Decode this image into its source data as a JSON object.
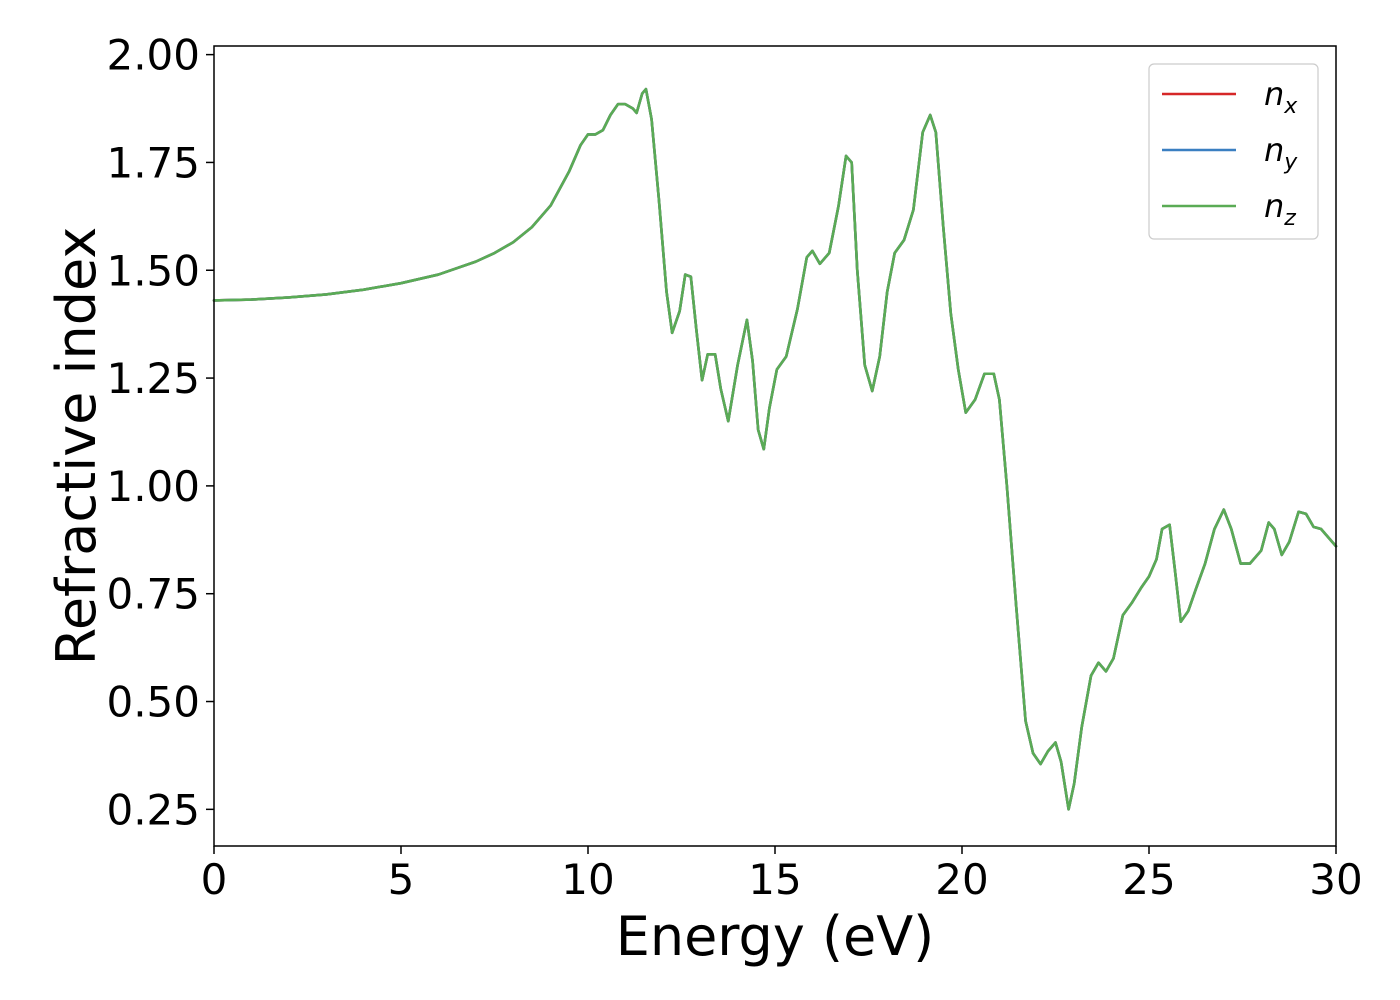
{
  "chart_data": {
    "type": "line",
    "xlabel": "Energy (eV)",
    "ylabel": "Refractive index",
    "xlim": [
      0,
      30
    ],
    "ylim": [
      0.165,
      2.02
    ],
    "xticks": [
      0,
      5,
      10,
      15,
      20,
      25,
      30
    ],
    "xtick_labels": [
      "0",
      "5",
      "10",
      "15",
      "20",
      "25",
      "30"
    ],
    "yticks": [
      0.25,
      0.5,
      0.75,
      1.0,
      1.25,
      1.5,
      1.75,
      2.0
    ],
    "ytick_labels": [
      "0.25",
      "0.50",
      "0.75",
      "1.00",
      "1.25",
      "1.50",
      "1.75",
      "2.00"
    ],
    "grid": false,
    "legend_position": "top-right",
    "colors": {
      "n_x": "#d62728",
      "n_y": "#3a7fc1",
      "n_z": "#5aab55"
    },
    "x": [
      0,
      1,
      2,
      3,
      4,
      5,
      6,
      7,
      7.5,
      8,
      8.5,
      9,
      9.5,
      9.8,
      10,
      10.2,
      10.4,
      10.6,
      10.8,
      11.0,
      11.2,
      11.3,
      11.45,
      11.55,
      11.7,
      11.9,
      12.1,
      12.25,
      12.45,
      12.6,
      12.75,
      12.9,
      13.05,
      13.2,
      13.4,
      13.55,
      13.75,
      14.0,
      14.25,
      14.4,
      14.55,
      14.7,
      14.85,
      15.05,
      15.3,
      15.6,
      15.85,
      16.0,
      16.2,
      16.45,
      16.7,
      16.9,
      17.05,
      17.2,
      17.4,
      17.6,
      17.8,
      18.0,
      18.2,
      18.45,
      18.7,
      18.95,
      19.15,
      19.3,
      19.5,
      19.7,
      19.9,
      20.1,
      20.35,
      20.6,
      20.85,
      21.0,
      21.2,
      21.45,
      21.7,
      21.9,
      22.1,
      22.3,
      22.5,
      22.65,
      22.85,
      23.0,
      23.2,
      23.45,
      23.65,
      23.85,
      24.05,
      24.3,
      24.55,
      24.8,
      25.0,
      25.2,
      25.35,
      25.55,
      25.7,
      25.85,
      26.05,
      26.25,
      26.5,
      26.75,
      27.0,
      27.2,
      27.45,
      27.7,
      28.0,
      28.2,
      28.35,
      28.55,
      28.75,
      29.0,
      29.2,
      29.4,
      29.6,
      29.8,
      30.0
    ],
    "series": [
      {
        "name": "n_x",
        "values": [
          1.43,
          1.432,
          1.437,
          1.444,
          1.455,
          1.47,
          1.49,
          1.52,
          1.54,
          1.565,
          1.6,
          1.65,
          1.73,
          1.79,
          1.815,
          1.815,
          1.825,
          1.86,
          1.885,
          1.885,
          1.875,
          1.865,
          1.91,
          1.92,
          1.85,
          1.66,
          1.45,
          1.355,
          1.405,
          1.49,
          1.485,
          1.36,
          1.245,
          1.305,
          1.305,
          1.225,
          1.15,
          1.28,
          1.385,
          1.29,
          1.13,
          1.085,
          1.18,
          1.27,
          1.3,
          1.41,
          1.53,
          1.545,
          1.515,
          1.54,
          1.65,
          1.765,
          1.75,
          1.5,
          1.28,
          1.22,
          1.3,
          1.45,
          1.54,
          1.57,
          1.64,
          1.82,
          1.86,
          1.82,
          1.6,
          1.4,
          1.27,
          1.17,
          1.2,
          1.26,
          1.26,
          1.2,
          1.0,
          0.72,
          0.455,
          0.38,
          0.355,
          0.385,
          0.405,
          0.36,
          0.25,
          0.31,
          0.44,
          0.56,
          0.59,
          0.57,
          0.6,
          0.7,
          0.73,
          0.765,
          0.79,
          0.83,
          0.9,
          0.91,
          0.8,
          0.685,
          0.71,
          0.76,
          0.82,
          0.9,
          0.945,
          0.9,
          0.82,
          0.82,
          0.85,
          0.915,
          0.9,
          0.84,
          0.87,
          0.94,
          0.935,
          0.905,
          0.9,
          0.88,
          0.86
        ]
      },
      {
        "name": "n_y",
        "values": [
          1.43,
          1.432,
          1.437,
          1.444,
          1.455,
          1.47,
          1.49,
          1.52,
          1.54,
          1.565,
          1.6,
          1.65,
          1.73,
          1.79,
          1.815,
          1.815,
          1.825,
          1.86,
          1.885,
          1.885,
          1.875,
          1.865,
          1.91,
          1.92,
          1.85,
          1.66,
          1.45,
          1.355,
          1.405,
          1.49,
          1.485,
          1.36,
          1.245,
          1.305,
          1.305,
          1.225,
          1.15,
          1.28,
          1.385,
          1.29,
          1.13,
          1.085,
          1.18,
          1.27,
          1.3,
          1.41,
          1.53,
          1.545,
          1.515,
          1.54,
          1.65,
          1.765,
          1.75,
          1.5,
          1.28,
          1.22,
          1.3,
          1.45,
          1.54,
          1.57,
          1.64,
          1.82,
          1.86,
          1.82,
          1.6,
          1.4,
          1.27,
          1.17,
          1.2,
          1.26,
          1.26,
          1.2,
          1.0,
          0.72,
          0.455,
          0.38,
          0.355,
          0.385,
          0.405,
          0.36,
          0.25,
          0.31,
          0.44,
          0.56,
          0.59,
          0.57,
          0.6,
          0.7,
          0.73,
          0.765,
          0.79,
          0.83,
          0.9,
          0.91,
          0.8,
          0.685,
          0.71,
          0.76,
          0.82,
          0.9,
          0.945,
          0.9,
          0.82,
          0.82,
          0.85,
          0.915,
          0.9,
          0.84,
          0.87,
          0.94,
          0.935,
          0.905,
          0.9,
          0.88,
          0.86
        ]
      },
      {
        "name": "n_z",
        "values": [
          1.43,
          1.432,
          1.437,
          1.444,
          1.455,
          1.47,
          1.49,
          1.52,
          1.54,
          1.565,
          1.6,
          1.65,
          1.73,
          1.79,
          1.815,
          1.815,
          1.825,
          1.86,
          1.885,
          1.885,
          1.875,
          1.865,
          1.91,
          1.92,
          1.85,
          1.66,
          1.45,
          1.355,
          1.405,
          1.49,
          1.485,
          1.36,
          1.245,
          1.305,
          1.305,
          1.225,
          1.15,
          1.28,
          1.385,
          1.29,
          1.13,
          1.085,
          1.18,
          1.27,
          1.3,
          1.41,
          1.53,
          1.545,
          1.515,
          1.54,
          1.65,
          1.765,
          1.75,
          1.5,
          1.28,
          1.22,
          1.3,
          1.45,
          1.54,
          1.57,
          1.64,
          1.82,
          1.86,
          1.82,
          1.6,
          1.4,
          1.27,
          1.17,
          1.2,
          1.26,
          1.26,
          1.2,
          1.0,
          0.72,
          0.455,
          0.38,
          0.355,
          0.385,
          0.405,
          0.36,
          0.25,
          0.31,
          0.44,
          0.56,
          0.59,
          0.57,
          0.6,
          0.7,
          0.73,
          0.765,
          0.79,
          0.83,
          0.9,
          0.91,
          0.8,
          0.685,
          0.71,
          0.76,
          0.82,
          0.9,
          0.945,
          0.9,
          0.82,
          0.82,
          0.85,
          0.915,
          0.9,
          0.84,
          0.87,
          0.94,
          0.935,
          0.905,
          0.9,
          0.88,
          0.86
        ]
      }
    ],
    "legend": [
      {
        "base": "n",
        "sub": "x",
        "color_key": "n_x"
      },
      {
        "base": "n",
        "sub": "y",
        "color_key": "n_y"
      },
      {
        "base": "n",
        "sub": "z",
        "color_key": "n_z"
      }
    ]
  }
}
